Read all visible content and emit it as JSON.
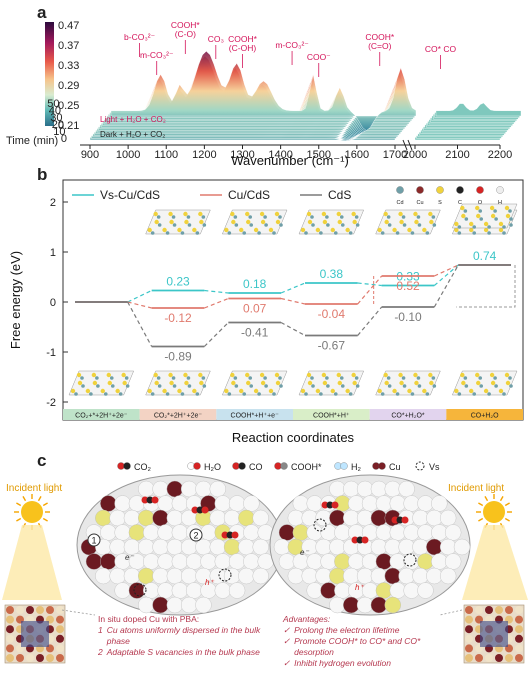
{
  "panel_a": {
    "label": "a",
    "colorbar_ticks": [
      "0.47",
      "0.37",
      "0.33",
      "0.29",
      "0.25",
      "0.21"
    ],
    "yaxis_label": "Time (min)",
    "time_ticks": [
      "50",
      "40",
      "30",
      "20",
      "10",
      "0"
    ],
    "light_label": "Light + H₂O + CO₂",
    "dark_label": "Dark + H₂O + CO₂",
    "xlabel": "Wavenumber (cm⁻¹)",
    "x_ticks": [
      "900",
      "1000",
      "1100",
      "1200",
      "1300",
      "1400",
      "1500",
      "1600",
      "1700",
      "2000",
      "2100",
      "2200"
    ],
    "annotations": [
      {
        "text": "b-CO₃²⁻",
        "wn": 1030
      },
      {
        "text": "m-CO₃²⁻",
        "wn": 1075
      },
      {
        "text": "COOH*",
        "sub": "(C-O)",
        "wn": 1150
      },
      {
        "text": "CO₃",
        "wn": 1230
      },
      {
        "text": "COOH*",
        "sub": "(C-OH)",
        "wn": 1300
      },
      {
        "text": "m-CO₃²⁻",
        "wn": 1430
      },
      {
        "text": "COO⁻",
        "wn": 1500
      },
      {
        "text": "COOH*",
        "sub": "(C=O)",
        "wn": 1660
      },
      {
        "text": "CO* CO",
        "wn": 2060
      }
    ]
  },
  "panel_b": {
    "label": "b",
    "ylabel": "Free energy (eV)",
    "xlabel": "Reaction coordinates",
    "y_ticks": [
      "2",
      "1",
      "0",
      "-1",
      "-2"
    ],
    "legend": [
      {
        "name": "Vs-Cu/CdS",
        "color": "#3cc6c8"
      },
      {
        "name": "Cu/CdS",
        "color": "#e07a6e"
      },
      {
        "name": "CdS",
        "color": "#7a7a7a"
      }
    ],
    "atom_legend": [
      "Cd",
      "Cu",
      "S",
      "C",
      "O",
      "H"
    ],
    "steps": [
      "CO₂+*+2H⁺+2e⁻",
      "CO₂*+2H⁺+2e⁻",
      "COOH*+H⁺+e⁻",
      "COOH*+H⁺",
      "CO*+H₂O*",
      "CO+H₂O"
    ],
    "step_colors": [
      "#bfe3c9",
      "#f3d3c4",
      "#c8e2ee",
      "#d9eec8",
      "#e2d4ee",
      "#f6b53b"
    ]
  },
  "chart_data": {
    "type": "line",
    "categories": [
      "CO₂+*+2H⁺+2e⁻",
      "CO₂*+2H⁺+2e⁻",
      "COOH*+H⁺+e⁻",
      "COOH*+H⁺",
      "CO*+H₂O*",
      "CO+H₂O"
    ],
    "series": [
      {
        "name": "Vs-Cu/CdS",
        "values": [
          0,
          0.23,
          0.18,
          0.38,
          0.33,
          0.74
        ],
        "labels": [
          "",
          "0.23",
          "0.18",
          "0.38",
          "0.33",
          "0.74"
        ]
      },
      {
        "name": "Cu/CdS",
        "values": [
          0,
          -0.12,
          0.07,
          -0.04,
          0.52,
          0.74
        ],
        "labels": [
          "",
          "-0.12",
          "0.07",
          "-0.04",
          "0.52",
          ""
        ]
      },
      {
        "name": "CdS",
        "values": [
          0,
          -0.89,
          -0.41,
          -0.67,
          -0.1,
          0.74
        ],
        "labels": [
          "",
          "-0.89",
          "-0.41",
          "-0.67",
          "-0.10",
          ""
        ]
      }
    ],
    "ylabel": "Free energy (eV)",
    "xlabel": "Reaction coordinates",
    "ylim": [
      -2.2,
      2.2
    ]
  },
  "panel_c": {
    "label": "c",
    "legend": [
      "CO₂",
      "H₂O",
      "CO",
      "COOH*",
      "H₂",
      "Cu",
      "Vs"
    ],
    "incident_left": "Incident light",
    "incident_right": "Incident light",
    "left_title": "In situ doped Cu with PBA:",
    "left_items": [
      "Cu atoms uniformly dispersed in the bulk phase",
      "Adaptable S vacancies in the bulk phase"
    ],
    "left_nums": [
      "1",
      "2"
    ],
    "right_title": "Advantages:",
    "right_items": [
      "Prolong the electron lifetime",
      "Promote COOH* to CO* and CO* desorption",
      "Inhibit hydrogen evolution"
    ],
    "check": "✓",
    "ehlabels": [
      "e⁻",
      "h⁺"
    ]
  }
}
